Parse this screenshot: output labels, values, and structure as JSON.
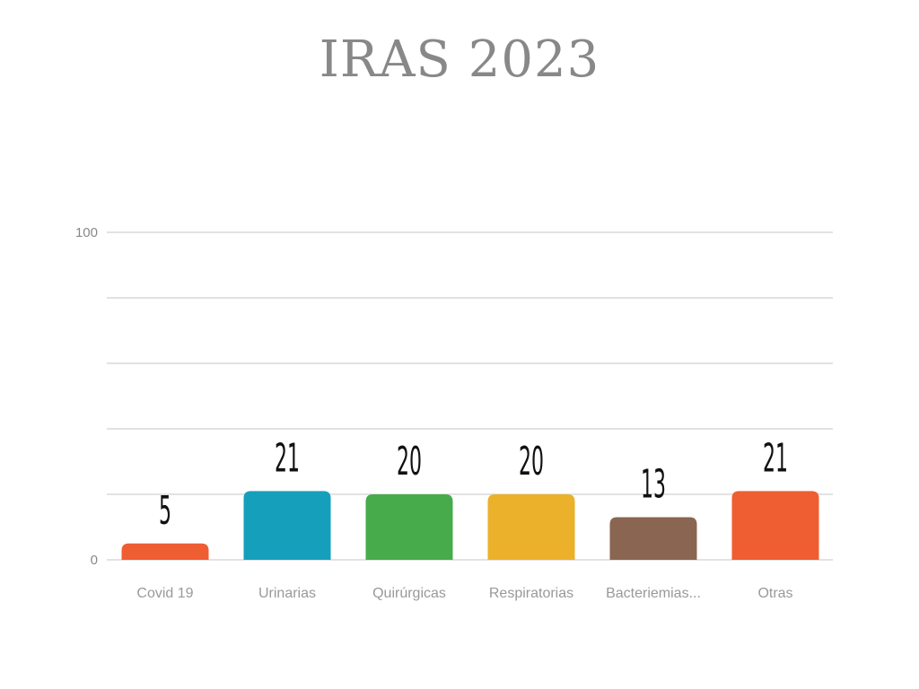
{
  "chart_data": {
    "type": "bar",
    "title": "IRAS 2023",
    "categories": [
      "Covid 19",
      "Urinarias",
      "Quirúrgicas",
      "Respiratorias",
      "Bacteriemias...",
      "Otras"
    ],
    "values": [
      5,
      21,
      20,
      20,
      13,
      21
    ],
    "colors": [
      "#ef5d33",
      "#169fbb",
      "#47ab4b",
      "#ebb12a",
      "#8a6551",
      "#ef5d33"
    ],
    "ylim": [
      0,
      100
    ],
    "y_tick_labels": [
      "0",
      "100"
    ],
    "gridlines": [
      0,
      20,
      40,
      60,
      80,
      100
    ],
    "grid": true,
    "data_labels": true,
    "xlabel": "",
    "ylabel": ""
  }
}
